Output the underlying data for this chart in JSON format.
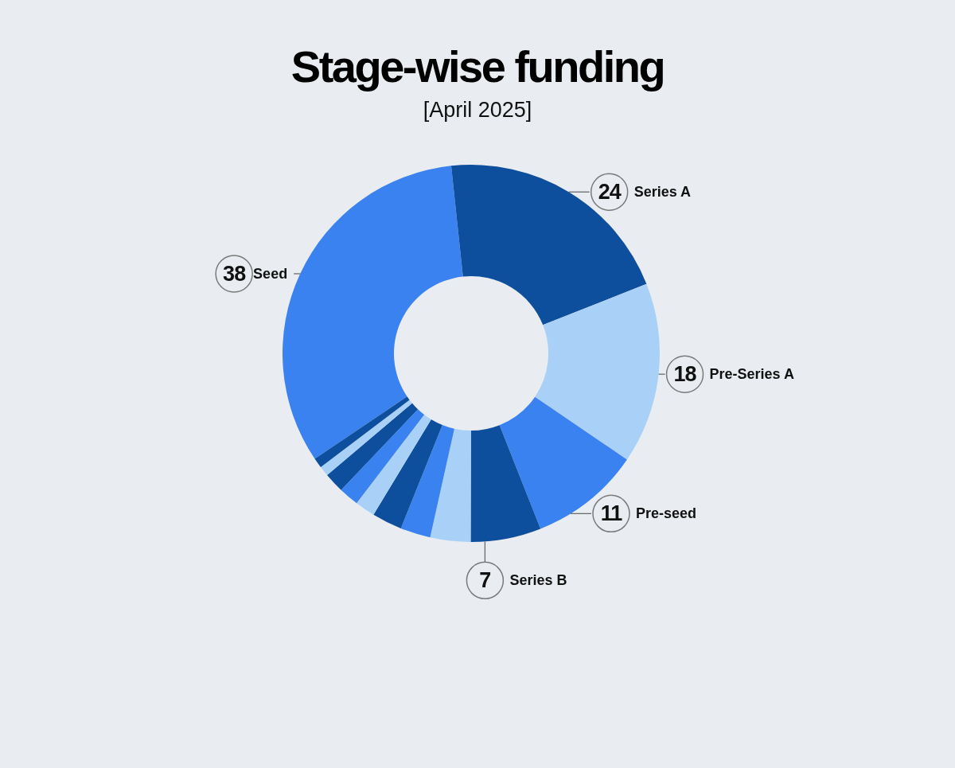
{
  "chart_data": {
    "type": "donut",
    "title": "Stage-wise funding",
    "subtitle": "[April 2025]",
    "categories": [
      "Seed",
      "Series A",
      "Pre-Series A",
      "Pre-seed",
      "Series B",
      null,
      null,
      null,
      null,
      null,
      null,
      null,
      null
    ],
    "values": [
      38,
      24,
      18,
      11,
      7,
      4,
      3,
      3,
      2,
      2,
      2,
      1,
      1
    ],
    "colors": [
      "#3a82ef",
      "#0e4f9d",
      "#a9d0f7",
      "#3a82ef",
      "#0e4f9d",
      "#a9d0f7",
      "#3a82ef",
      "#0e4f9d",
      "#a9d0f7",
      "#3a82ef",
      "#0e4f9d",
      "#a9d0f7",
      "#0e4f9d"
    ],
    "value_labels": [
      "38",
      "24",
      "18",
      "11",
      "7",
      null,
      null,
      null,
      null,
      null,
      null,
      null,
      null
    ]
  }
}
